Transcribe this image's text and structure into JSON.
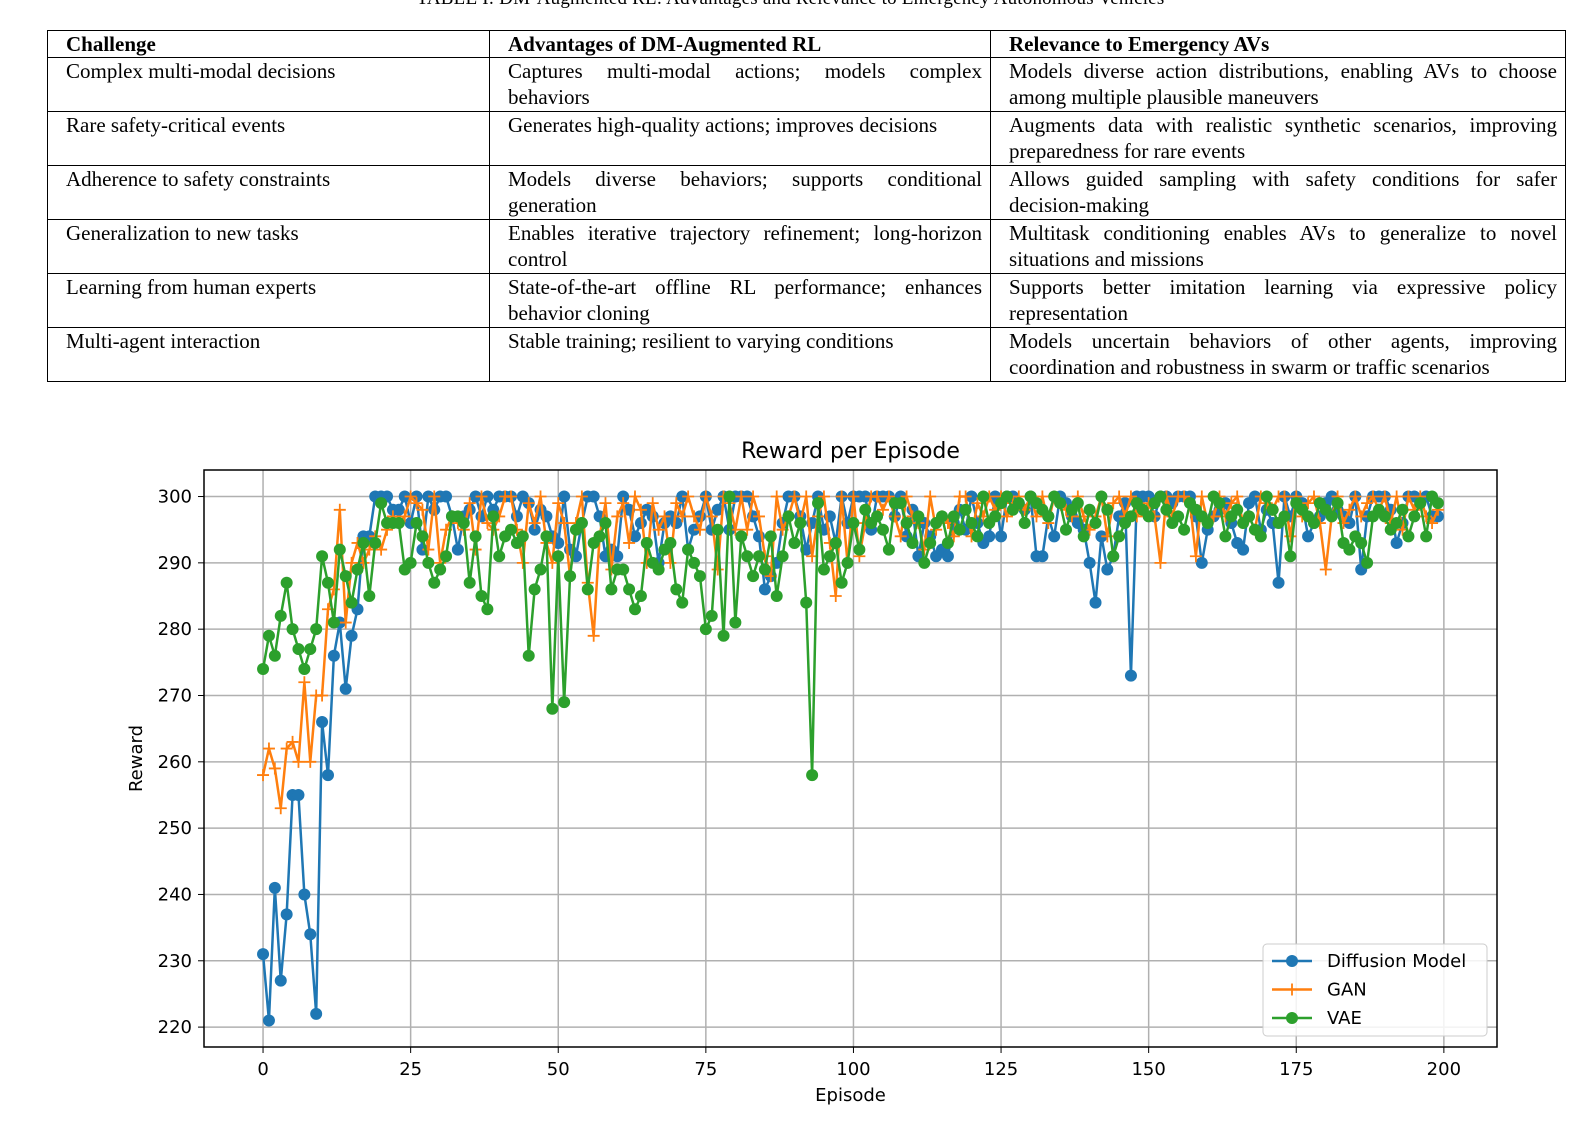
{
  "table": {
    "caption": "TABLE I: DM-Augmented RL: Advantages and Relevance to Emergency Autonomous Vehicles",
    "headers": [
      "Challenge",
      "Advantages of DM-Augmented RL",
      "Relevance to Emergency AVs"
    ],
    "rows": [
      [
        "Complex multi-modal decisions",
        "Captures multi-modal actions; models complex behaviors",
        "Models diverse action distributions, enabling AVs to choose among multiple plausible maneuvers"
      ],
      [
        "Rare safety-critical events",
        "Generates high-quality actions; improves decisions",
        "Augments data with realistic synthetic scenarios, improving preparedness for rare events"
      ],
      [
        "Adherence to safety constraints",
        "Models diverse behaviors; supports conditional generation",
        "Allows guided sampling with safety conditions for safer decision-making"
      ],
      [
        "Generalization to new tasks",
        "Enables iterative trajectory refinement; long-horizon control",
        "Multitask conditioning enables AVs to generalize to novel situations and missions"
      ],
      [
        "Learning from human experts",
        "State-of-the-art offline RL performance; enhances behavior cloning",
        "Supports better imitation learning via expressive policy representation"
      ],
      [
        "Multi-agent interaction",
        "Stable training; resilient to varying conditions",
        "Models uncertain behaviors of other agents, improving coordination and robustness in swarm or traffic scenarios"
      ]
    ]
  },
  "chart_data": {
    "type": "line",
    "title": "Reward per Episode",
    "xlabel": "Episode",
    "ylabel": "Reward",
    "xlim": [
      -10,
      209
    ],
    "ylim": [
      217,
      304
    ],
    "xticks": [
      0,
      25,
      50,
      75,
      100,
      125,
      150,
      175,
      200
    ],
    "yticks": [
      220,
      230,
      240,
      250,
      260,
      270,
      280,
      290,
      300
    ],
    "grid": true,
    "legend_position": "lower-right",
    "x_start": 0,
    "series": [
      {
        "name": "Diffusion Model",
        "color": "#1f77b4",
        "marker": "circle",
        "values": [
          231,
          221,
          241,
          227,
          237,
          255,
          255,
          240,
          234,
          222,
          266,
          258,
          276,
          281,
          271,
          279,
          283,
          294,
          294,
          300,
          300,
          300,
          298,
          298,
          300,
          296,
          300,
          292,
          300,
          298,
          300,
          300,
          297,
          292,
          297,
          298,
          300,
          297,
          300,
          298,
          300,
          300,
          300,
          297,
          300,
          299,
          295,
          298,
          297,
          294,
          293,
          300,
          292,
          291,
          296,
          300,
          300,
          297,
          291,
          292,
          291,
          300,
          298,
          294,
          296,
          298,
          297,
          290,
          296,
          297,
          296,
          300,
          292,
          295,
          297,
          300,
          295,
          298,
          300,
          295,
          300,
          300,
          300,
          297,
          294,
          286,
          288,
          290,
          296,
          300,
          300,
          297,
          292,
          296,
          300,
          295,
          297,
          293,
          300,
          296,
          300,
          300,
          300,
          295,
          300,
          300,
          300,
          297,
          300,
          294,
          298,
          291,
          296,
          294,
          291,
          292,
          291,
          296,
          298,
          295,
          300,
          296,
          293,
          294,
          300,
          294,
          300,
          300,
          299,
          298,
          300,
          291,
          291,
          297,
          294,
          300,
          299,
          297,
          296,
          295,
          290,
          284,
          294,
          289,
          291,
          297,
          299,
          273,
          300,
          300,
          300,
          297,
          300,
          300,
          299,
          300,
          300,
          300,
          297,
          290,
          295,
          297,
          298,
          299,
          296,
          293,
          292,
          299,
          300,
          295,
          298,
          296,
          287,
          300,
          297,
          300,
          299,
          294,
          296,
          297,
          299,
          300,
          298,
          297,
          296,
          300,
          289,
          297,
          300,
          300,
          300,
          298,
          293,
          296,
          300,
          300,
          299,
          300,
          297,
          297
        ]
      },
      {
        "name": "GAN",
        "color": "#ff7f0e",
        "marker": "plus",
        "values": [
          258,
          262,
          259,
          253,
          262,
          263,
          260,
          272,
          260,
          270,
          270,
          283,
          286,
          298,
          281,
          290,
          293,
          290,
          292,
          294,
          292,
          295,
          297,
          296,
          297,
          300,
          299,
          298,
          292,
          300,
          290,
          295,
          297,
          296,
          295,
          299,
          292,
          300,
          296,
          295,
          297,
          300,
          300,
          295,
          290,
          299,
          296,
          300,
          293,
          290,
          299,
          296,
          288,
          296,
          300,
          287,
          279,
          294,
          299,
          289,
          297,
          299,
          293,
          300,
          298,
          290,
          299,
          295,
          297,
          290,
          299,
          297,
          300,
          297,
          295,
          300,
          297,
          289,
          300,
          299,
          295,
          300,
          295,
          300,
          297,
          291,
          288,
          300,
          295,
          297,
          300,
          296,
          300,
          291,
          297,
          300,
          293,
          285,
          300,
          290,
          300,
          291,
          296,
          300,
          300,
          298,
          300,
          297,
          294,
          300,
          297,
          296,
          292,
          300,
          295,
          297,
          296,
          294,
          300,
          300,
          294,
          299,
          297,
          300,
          298,
          300,
          297,
          299,
          300,
          298,
          300,
          297,
          300,
          296,
          300,
          299,
          298,
          297,
          300,
          297,
          295,
          297,
          300,
          294,
          299,
          300,
          297,
          300,
          297,
          298,
          299,
          297,
          290,
          300,
          297,
          300,
          300,
          299,
          291,
          300,
          296,
          297,
          300,
          297,
          299,
          300,
          296,
          297,
          295,
          300,
          299,
          298,
          300,
          300,
          294,
          300,
          297,
          299,
          300,
          296,
          289,
          297,
          300,
          296,
          298,
          300,
          297,
          299,
          300,
          298,
          300,
          296,
          300,
          295,
          300,
          298,
          300,
          297,
          296,
          298
        ]
      },
      {
        "name": "VAE",
        "color": "#2ca02c",
        "marker": "circle",
        "values": [
          274,
          279,
          276,
          282,
          287,
          280,
          277,
          274,
          277,
          280,
          291,
          287,
          281,
          292,
          288,
          284,
          289,
          293,
          285,
          293,
          299,
          296,
          296,
          296,
          289,
          290,
          296,
          294,
          290,
          287,
          289,
          291,
          297,
          297,
          296,
          287,
          294,
          285,
          283,
          297,
          291,
          294,
          295,
          293,
          294,
          276,
          286,
          289,
          294,
          268,
          291,
          269,
          288,
          295,
          296,
          286,
          293,
          294,
          296,
          286,
          289,
          289,
          286,
          283,
          285,
          293,
          290,
          289,
          292,
          293,
          286,
          284,
          292,
          290,
          288,
          280,
          282,
          295,
          279,
          300,
          281,
          294,
          291,
          288,
          291,
          289,
          294,
          285,
          291,
          297,
          293,
          296,
          284,
          258,
          299,
          289,
          291,
          293,
          287,
          290,
          296,
          292,
          298,
          296,
          297,
          295,
          292,
          299,
          299,
          296,
          293,
          297,
          290,
          293,
          296,
          297,
          293,
          297,
          295,
          298,
          296,
          294,
          300,
          296,
          297,
          299,
          300,
          298,
          299,
          296,
          300,
          299,
          298,
          297,
          300,
          299,
          295,
          298,
          299,
          294,
          298,
          296,
          300,
          298,
          291,
          294,
          296,
          297,
          299,
          298,
          297,
          299,
          300,
          298,
          296,
          297,
          295,
          299,
          298,
          297,
          296,
          300,
          299,
          294,
          297,
          298,
          296,
          297,
          295,
          294,
          300,
          298,
          296,
          297,
          291,
          299,
          298,
          297,
          296,
          299,
          298,
          297,
          299,
          293,
          292,
          294,
          293,
          290,
          297,
          298,
          297,
          295,
          296,
          298,
          294,
          297,
          299,
          294,
          300,
          299
        ]
      }
    ]
  }
}
